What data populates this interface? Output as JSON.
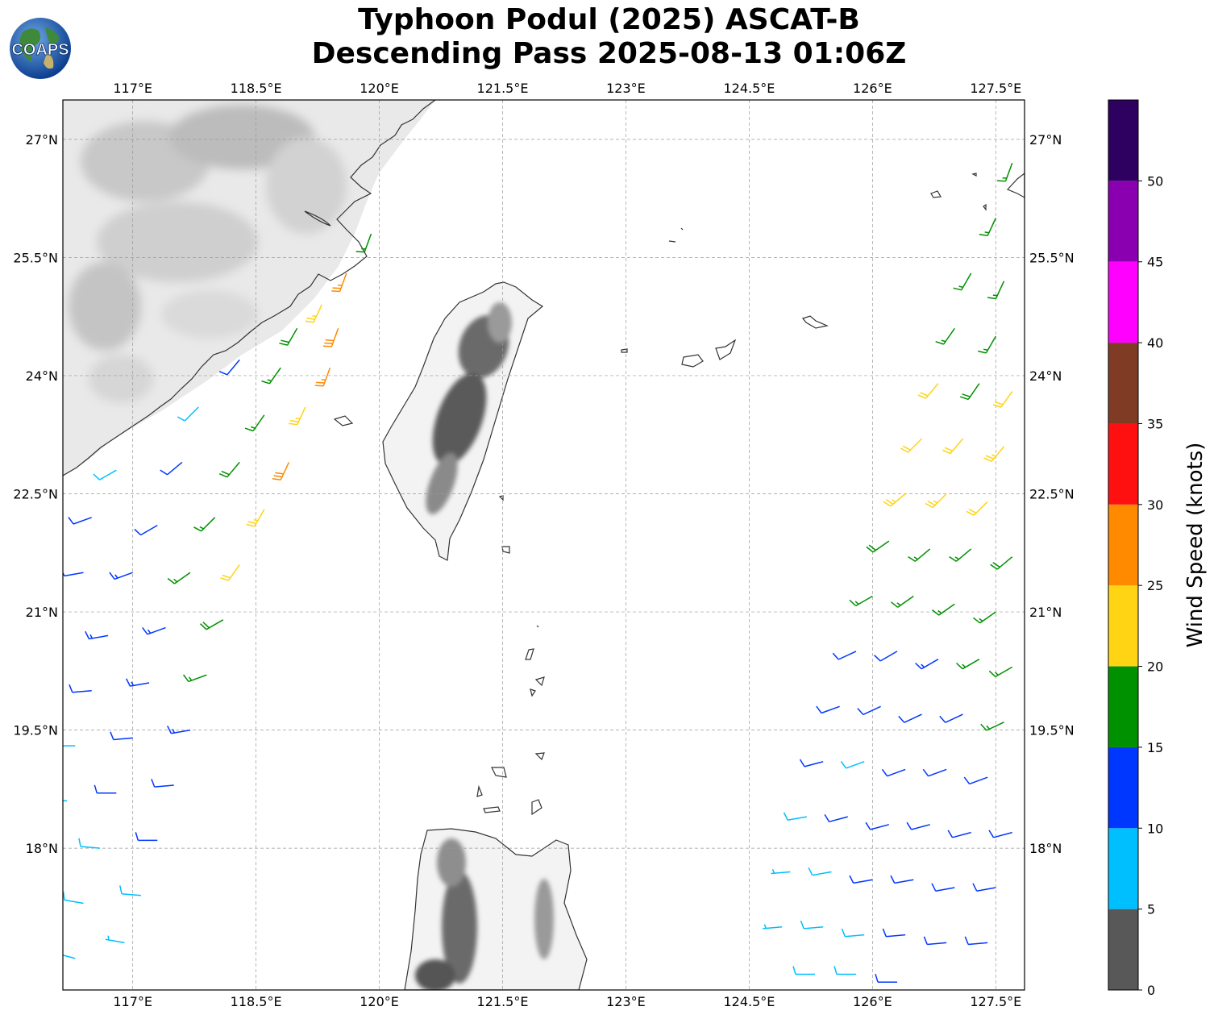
{
  "title": {
    "line1": "Typhoon Podul (2025) ASCAT-B",
    "line2": "Descending Pass 2025-08-13 01:06Z"
  },
  "logo": {
    "text": "COAPS",
    "icon": "globe-logo-icon"
  },
  "map": {
    "lon_range": [
      116.15,
      127.85
    ],
    "lat_range": [
      16.2,
      27.5
    ],
    "lon_ticks": [
      {
        "value": 117.0,
        "label": "117°E"
      },
      {
        "value": 118.5,
        "label": "118.5°E"
      },
      {
        "value": 120.0,
        "label": "120°E"
      },
      {
        "value": 121.5,
        "label": "121.5°E"
      },
      {
        "value": 123.0,
        "label": "123°E"
      },
      {
        "value": 124.5,
        "label": "124.5°E"
      },
      {
        "value": 126.0,
        "label": "126°E"
      },
      {
        "value": 127.5,
        "label": "127.5°E"
      }
    ],
    "lat_ticks": [
      {
        "value": 27.0,
        "label": "27°N"
      },
      {
        "value": 25.5,
        "label": "25.5°N"
      },
      {
        "value": 24.0,
        "label": "24°N"
      },
      {
        "value": 22.5,
        "label": "22.5°N"
      },
      {
        "value": 21.0,
        "label": "21°N"
      },
      {
        "value": 19.5,
        "label": "19.5°N"
      },
      {
        "value": 18.0,
        "label": "18°N"
      }
    ],
    "gridlines": true,
    "background": "terrain-grayscale"
  },
  "colorbar": {
    "label": "Wind Speed (knots)",
    "bins": [
      {
        "min": 0,
        "max": 5,
        "color": "#585858"
      },
      {
        "min": 5,
        "max": 10,
        "color": "#00bfff"
      },
      {
        "min": 10,
        "max": 15,
        "color": "#0037ff"
      },
      {
        "min": 15,
        "max": 20,
        "color": "#009100"
      },
      {
        "min": 20,
        "max": 25,
        "color": "#ffd414"
      },
      {
        "min": 25,
        "max": 30,
        "color": "#ff8a00"
      },
      {
        "min": 30,
        "max": 35,
        "color": "#ff1010"
      },
      {
        "min": 35,
        "max": 40,
        "color": "#7f3b24"
      },
      {
        "min": 40,
        "max": 45,
        "color": "#ff00ff"
      },
      {
        "min": 45,
        "max": 50,
        "color": "#8a00b0"
      },
      {
        "min": 50,
        "max": 55,
        "color": "#2e0060"
      }
    ],
    "tick_labels": [
      "0",
      "5",
      "10",
      "15",
      "20",
      "25",
      "30",
      "35",
      "40",
      "45",
      "50"
    ]
  },
  "chart_data": {
    "type": "scatter",
    "description_units": "wind barbs at lon/lat (degrees), speed in knots",
    "swaths": [
      {
        "name": "west",
        "barbs": [
          {
            "lon": 119.9,
            "lat": 25.8,
            "speed": 17,
            "dir": 200
          },
          {
            "lon": 119.6,
            "lat": 25.3,
            "speed": 27,
            "dir": 200
          },
          {
            "lon": 119.3,
            "lat": 24.9,
            "speed": 23,
            "dir": 205
          },
          {
            "lon": 119.0,
            "lat": 24.6,
            "speed": 18,
            "dir": 210
          },
          {
            "lon": 119.5,
            "lat": 24.6,
            "speed": 28,
            "dir": 200
          },
          {
            "lon": 119.4,
            "lat": 24.1,
            "speed": 27,
            "dir": 200
          },
          {
            "lon": 118.8,
            "lat": 24.1,
            "speed": 16,
            "dir": 215
          },
          {
            "lon": 118.3,
            "lat": 24.2,
            "speed": 12,
            "dir": 220
          },
          {
            "lon": 119.1,
            "lat": 23.6,
            "speed": 23,
            "dir": 205
          },
          {
            "lon": 118.6,
            "lat": 23.5,
            "speed": 17,
            "dir": 215
          },
          {
            "lon": 117.8,
            "lat": 23.6,
            "speed": 8,
            "dir": 225
          },
          {
            "lon": 118.9,
            "lat": 22.9,
            "speed": 28,
            "dir": 205
          },
          {
            "lon": 118.3,
            "lat": 22.9,
            "speed": 19,
            "dir": 220
          },
          {
            "lon": 117.6,
            "lat": 22.9,
            "speed": 12,
            "dir": 230
          },
          {
            "lon": 116.8,
            "lat": 22.8,
            "speed": 8,
            "dir": 240
          },
          {
            "lon": 118.6,
            "lat": 22.3,
            "speed": 23,
            "dir": 210
          },
          {
            "lon": 118.0,
            "lat": 22.2,
            "speed": 17,
            "dir": 225
          },
          {
            "lon": 117.3,
            "lat": 22.1,
            "speed": 12,
            "dir": 240
          },
          {
            "lon": 116.5,
            "lat": 22.2,
            "speed": 11,
            "dir": 250
          },
          {
            "lon": 118.3,
            "lat": 21.6,
            "speed": 22,
            "dir": 215
          },
          {
            "lon": 117.7,
            "lat": 21.5,
            "speed": 17,
            "dir": 235
          },
          {
            "lon": 117.0,
            "lat": 21.5,
            "speed": 13,
            "dir": 250
          },
          {
            "lon": 116.4,
            "lat": 21.5,
            "speed": 12,
            "dir": 260
          },
          {
            "lon": 118.1,
            "lat": 20.9,
            "speed": 18,
            "dir": 240
          },
          {
            "lon": 117.4,
            "lat": 20.8,
            "speed": 14,
            "dir": 250
          },
          {
            "lon": 116.7,
            "lat": 20.7,
            "speed": 13,
            "dir": 260
          },
          {
            "lon": 117.9,
            "lat": 20.2,
            "speed": 17,
            "dir": 250
          },
          {
            "lon": 117.2,
            "lat": 20.1,
            "speed": 13,
            "dir": 260
          },
          {
            "lon": 116.5,
            "lat": 20.0,
            "speed": 12,
            "dir": 265
          },
          {
            "lon": 117.7,
            "lat": 19.5,
            "speed": 13,
            "dir": 260
          },
          {
            "lon": 117.0,
            "lat": 19.4,
            "speed": 12,
            "dir": 265
          },
          {
            "lon": 116.3,
            "lat": 19.3,
            "speed": 9,
            "dir": 270
          },
          {
            "lon": 117.5,
            "lat": 18.8,
            "speed": 12,
            "dir": 265
          },
          {
            "lon": 116.8,
            "lat": 18.7,
            "speed": 11,
            "dir": 270
          },
          {
            "lon": 116.2,
            "lat": 18.6,
            "speed": 8,
            "dir": 275
          },
          {
            "lon": 117.3,
            "lat": 18.1,
            "speed": 12,
            "dir": 270
          },
          {
            "lon": 116.6,
            "lat": 18.0,
            "speed": 9,
            "dir": 275
          },
          {
            "lon": 117.1,
            "lat": 17.4,
            "speed": 8,
            "dir": 275
          },
          {
            "lon": 116.4,
            "lat": 17.3,
            "speed": 9,
            "dir": 280
          },
          {
            "lon": 116.9,
            "lat": 16.8,
            "speed": 7,
            "dir": 280
          },
          {
            "lon": 116.3,
            "lat": 16.6,
            "speed": 8,
            "dir": 285
          }
        ]
      },
      {
        "name": "east",
        "barbs": [
          {
            "lon": 127.7,
            "lat": 26.7,
            "speed": 17,
            "dir": 200
          },
          {
            "lon": 127.5,
            "lat": 26.0,
            "speed": 17,
            "dir": 205
          },
          {
            "lon": 127.2,
            "lat": 25.3,
            "speed": 17,
            "dir": 210
          },
          {
            "lon": 127.6,
            "lat": 25.2,
            "speed": 17,
            "dir": 205
          },
          {
            "lon": 127.0,
            "lat": 24.6,
            "speed": 17,
            "dir": 215
          },
          {
            "lon": 127.5,
            "lat": 24.5,
            "speed": 17,
            "dir": 210
          },
          {
            "lon": 126.8,
            "lat": 23.9,
            "speed": 22,
            "dir": 220
          },
          {
            "lon": 127.3,
            "lat": 23.9,
            "speed": 18,
            "dir": 215
          },
          {
            "lon": 127.7,
            "lat": 23.8,
            "speed": 22,
            "dir": 215
          },
          {
            "lon": 126.6,
            "lat": 23.2,
            "speed": 22,
            "dir": 225
          },
          {
            "lon": 127.1,
            "lat": 23.2,
            "speed": 22,
            "dir": 220
          },
          {
            "lon": 127.6,
            "lat": 23.1,
            "speed": 23,
            "dir": 220
          },
          {
            "lon": 126.4,
            "lat": 22.5,
            "speed": 23,
            "dir": 230
          },
          {
            "lon": 126.9,
            "lat": 22.5,
            "speed": 23,
            "dir": 225
          },
          {
            "lon": 127.4,
            "lat": 22.4,
            "speed": 22,
            "dir": 225
          },
          {
            "lon": 126.2,
            "lat": 21.9,
            "speed": 18,
            "dir": 235
          },
          {
            "lon": 126.7,
            "lat": 21.8,
            "speed": 17,
            "dir": 230
          },
          {
            "lon": 127.2,
            "lat": 21.8,
            "speed": 17,
            "dir": 230
          },
          {
            "lon": 127.7,
            "lat": 21.7,
            "speed": 18,
            "dir": 230
          },
          {
            "lon": 126.0,
            "lat": 21.2,
            "speed": 17,
            "dir": 240
          },
          {
            "lon": 126.5,
            "lat": 21.2,
            "speed": 17,
            "dir": 235
          },
          {
            "lon": 127.0,
            "lat": 21.1,
            "speed": 17,
            "dir": 235
          },
          {
            "lon": 127.5,
            "lat": 21.0,
            "speed": 17,
            "dir": 235
          },
          {
            "lon": 125.8,
            "lat": 20.5,
            "speed": 12,
            "dir": 245
          },
          {
            "lon": 126.3,
            "lat": 20.5,
            "speed": 12,
            "dir": 240
          },
          {
            "lon": 126.8,
            "lat": 20.4,
            "speed": 13,
            "dir": 240
          },
          {
            "lon": 127.3,
            "lat": 20.4,
            "speed": 17,
            "dir": 240
          },
          {
            "lon": 127.7,
            "lat": 20.3,
            "speed": 17,
            "dir": 240
          },
          {
            "lon": 125.6,
            "lat": 19.8,
            "speed": 12,
            "dir": 250
          },
          {
            "lon": 126.1,
            "lat": 19.8,
            "speed": 12,
            "dir": 245
          },
          {
            "lon": 126.6,
            "lat": 19.7,
            "speed": 12,
            "dir": 245
          },
          {
            "lon": 127.1,
            "lat": 19.7,
            "speed": 12,
            "dir": 245
          },
          {
            "lon": 127.6,
            "lat": 19.6,
            "speed": 17,
            "dir": 245
          },
          {
            "lon": 125.4,
            "lat": 19.1,
            "speed": 12,
            "dir": 255
          },
          {
            "lon": 125.9,
            "lat": 19.1,
            "speed": 8,
            "dir": 250
          },
          {
            "lon": 126.4,
            "lat": 19.0,
            "speed": 12,
            "dir": 250
          },
          {
            "lon": 126.9,
            "lat": 19.0,
            "speed": 12,
            "dir": 250
          },
          {
            "lon": 127.4,
            "lat": 18.9,
            "speed": 12,
            "dir": 250
          },
          {
            "lon": 125.2,
            "lat": 18.4,
            "speed": 8,
            "dir": 260
          },
          {
            "lon": 125.7,
            "lat": 18.4,
            "speed": 12,
            "dir": 255
          },
          {
            "lon": 126.2,
            "lat": 18.3,
            "speed": 12,
            "dir": 255
          },
          {
            "lon": 126.7,
            "lat": 18.3,
            "speed": 12,
            "dir": 255
          },
          {
            "lon": 127.2,
            "lat": 18.2,
            "speed": 12,
            "dir": 255
          },
          {
            "lon": 127.7,
            "lat": 18.2,
            "speed": 12,
            "dir": 255
          },
          {
            "lon": 125.0,
            "lat": 17.7,
            "speed": 7,
            "dir": 265
          },
          {
            "lon": 125.5,
            "lat": 17.7,
            "speed": 8,
            "dir": 260
          },
          {
            "lon": 126.0,
            "lat": 17.6,
            "speed": 12,
            "dir": 260
          },
          {
            "lon": 126.5,
            "lat": 17.6,
            "speed": 12,
            "dir": 260
          },
          {
            "lon": 127.0,
            "lat": 17.5,
            "speed": 12,
            "dir": 260
          },
          {
            "lon": 127.5,
            "lat": 17.5,
            "speed": 12,
            "dir": 260
          },
          {
            "lon": 124.9,
            "lat": 17.0,
            "speed": 7,
            "dir": 265
          },
          {
            "lon": 125.4,
            "lat": 17.0,
            "speed": 8,
            "dir": 265
          },
          {
            "lon": 125.9,
            "lat": 16.9,
            "speed": 8,
            "dir": 265
          },
          {
            "lon": 126.4,
            "lat": 16.9,
            "speed": 12,
            "dir": 265
          },
          {
            "lon": 126.9,
            "lat": 16.8,
            "speed": 12,
            "dir": 265
          },
          {
            "lon": 127.4,
            "lat": 16.8,
            "speed": 12,
            "dir": 265
          },
          {
            "lon": 125.3,
            "lat": 16.4,
            "speed": 8,
            "dir": 270
          },
          {
            "lon": 125.8,
            "lat": 16.4,
            "speed": 8,
            "dir": 270
          },
          {
            "lon": 126.3,
            "lat": 16.3,
            "speed": 12,
            "dir": 270
          }
        ]
      }
    ]
  }
}
